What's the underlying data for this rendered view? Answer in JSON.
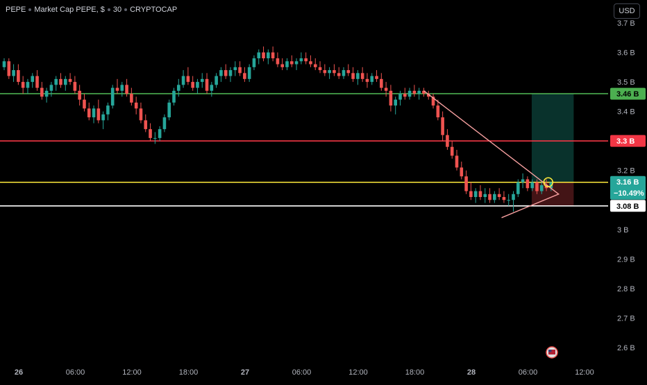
{
  "header": {
    "symbol": "PEPE",
    "title": "Market Cap PEPE, $",
    "interval": "30",
    "source": "CRYPTOCAP",
    "currency_label": "USD"
  },
  "colors": {
    "up": "#26a69a",
    "down": "#ef5350",
    "background": "#000000",
    "level_green": "#4caf50",
    "level_red": "#f23645",
    "level_yellow": "#ffeb3b",
    "level_white": "#ffffff",
    "triangle": "#f7a0a0",
    "tp_zone": "#0b3b34",
    "sl_zone": "#4a1618"
  },
  "chart_data": {
    "type": "candlestick",
    "title": "Market Cap PEPE, $ · 30 · CRYPTOCAP",
    "ylabel": "",
    "xlabel": "",
    "y_unit": "B",
    "ylim": [
      2.54,
      3.74
    ],
    "y_ticks": [
      "3.7 B",
      "3.6 B",
      "3.5 B",
      "3.4 B",
      "3.2 B",
      "3 B",
      "2.9 B",
      "2.8 B",
      "2.7 B",
      "2.6 B"
    ],
    "y_tick_values": [
      3.7,
      3.6,
      3.5,
      3.4,
      3.2,
      3.0,
      2.9,
      2.8,
      2.7,
      2.6
    ],
    "x_ticks": [
      "26",
      "06:00",
      "12:00",
      "18:00",
      "27",
      "06:00",
      "12:00",
      "18:00",
      "28",
      "06:00",
      "12:00"
    ],
    "x_tick_bar_index": [
      4,
      16,
      28,
      40,
      52,
      64,
      76,
      88,
      100,
      112,
      124
    ],
    "x_start_bar": 0.4,
    "bars_shown": 130,
    "grid": false,
    "horizontal_levels": [
      {
        "name": "target",
        "value": 3.46,
        "label": "3.46 B",
        "color": "#4caf50"
      },
      {
        "name": "resistance",
        "value": 3.3,
        "label": "3.3 B",
        "color": "#f23645"
      },
      {
        "name": "current",
        "value": 3.16,
        "label": "3.16 B",
        "change": "−10.49%",
        "color": "#ffeb3b"
      },
      {
        "name": "support",
        "value": 3.08,
        "label": "3.08 B",
        "color": "#ffffff"
      }
    ],
    "triangle_pattern": {
      "apex": [
        117.6,
        3.12
      ],
      "upper_start": [
        89,
        3.47
      ],
      "lower_start": [
        105.5,
        3.04
      ]
    },
    "position": {
      "entry": 3.16,
      "target": 3.46,
      "stop": 3.08,
      "start_bar": 112.8,
      "end_bar": 121.7
    },
    "marker": {
      "bar": 115.4,
      "value": 3.16
    },
    "candles": [
      [
        3.55,
        3.58,
        3.54,
        3.57
      ],
      [
        3.57,
        3.58,
        3.51,
        3.52
      ],
      [
        3.52,
        3.56,
        3.5,
        3.54
      ],
      [
        3.54,
        3.56,
        3.49,
        3.5
      ],
      [
        3.5,
        3.52,
        3.46,
        3.48
      ],
      [
        3.48,
        3.51,
        3.46,
        3.5
      ],
      [
        3.5,
        3.53,
        3.48,
        3.52
      ],
      [
        3.52,
        3.54,
        3.47,
        3.48
      ],
      [
        3.48,
        3.5,
        3.44,
        3.45
      ],
      [
        3.45,
        3.48,
        3.43,
        3.47
      ],
      [
        3.47,
        3.5,
        3.45,
        3.49
      ],
      [
        3.49,
        3.52,
        3.47,
        3.51
      ],
      [
        3.51,
        3.53,
        3.48,
        3.49
      ],
      [
        3.49,
        3.52,
        3.47,
        3.51
      ],
      [
        3.51,
        3.53,
        3.49,
        3.5
      ],
      [
        3.5,
        3.52,
        3.46,
        3.47
      ],
      [
        3.47,
        3.49,
        3.42,
        3.44
      ],
      [
        3.44,
        3.46,
        3.4,
        3.41
      ],
      [
        3.41,
        3.43,
        3.37,
        3.38
      ],
      [
        3.38,
        3.42,
        3.36,
        3.41
      ],
      [
        3.41,
        3.44,
        3.36,
        3.37
      ],
      [
        3.37,
        3.4,
        3.34,
        3.39
      ],
      [
        3.39,
        3.43,
        3.37,
        3.42
      ],
      [
        3.42,
        3.49,
        3.41,
        3.48
      ],
      [
        3.48,
        3.51,
        3.46,
        3.47
      ],
      [
        3.47,
        3.5,
        3.45,
        3.49
      ],
      [
        3.49,
        3.51,
        3.45,
        3.46
      ],
      [
        3.46,
        3.48,
        3.42,
        3.43
      ],
      [
        3.43,
        3.45,
        3.39,
        3.41
      ],
      [
        3.41,
        3.43,
        3.36,
        3.37
      ],
      [
        3.37,
        3.39,
        3.33,
        3.34
      ],
      [
        3.34,
        3.36,
        3.3,
        3.31
      ],
      [
        3.31,
        3.33,
        3.29,
        3.31
      ],
      [
        3.31,
        3.35,
        3.3,
        3.34
      ],
      [
        3.34,
        3.39,
        3.33,
        3.38
      ],
      [
        3.38,
        3.44,
        3.37,
        3.43
      ],
      [
        3.43,
        3.48,
        3.42,
        3.47
      ],
      [
        3.47,
        3.51,
        3.45,
        3.49
      ],
      [
        3.49,
        3.54,
        3.48,
        3.52
      ],
      [
        3.52,
        3.55,
        3.49,
        3.5
      ],
      [
        3.5,
        3.52,
        3.47,
        3.48
      ],
      [
        3.48,
        3.51,
        3.46,
        3.5
      ],
      [
        3.5,
        3.53,
        3.48,
        3.51
      ],
      [
        3.51,
        3.53,
        3.46,
        3.47
      ],
      [
        3.47,
        3.5,
        3.45,
        3.49
      ],
      [
        3.49,
        3.53,
        3.48,
        3.52
      ],
      [
        3.52,
        3.55,
        3.5,
        3.54
      ],
      [
        3.54,
        3.56,
        3.51,
        3.52
      ],
      [
        3.52,
        3.55,
        3.5,
        3.54
      ],
      [
        3.54,
        3.57,
        3.52,
        3.55
      ],
      [
        3.55,
        3.57,
        3.52,
        3.53
      ],
      [
        3.53,
        3.55,
        3.5,
        3.51
      ],
      [
        3.51,
        3.56,
        3.5,
        3.55
      ],
      [
        3.55,
        3.59,
        3.54,
        3.58
      ],
      [
        3.58,
        3.61,
        3.56,
        3.6
      ],
      [
        3.6,
        3.62,
        3.57,
        3.58
      ],
      [
        3.58,
        3.61,
        3.56,
        3.6
      ],
      [
        3.6,
        3.62,
        3.57,
        3.58
      ],
      [
        3.58,
        3.6,
        3.55,
        3.56
      ],
      [
        3.56,
        3.58,
        3.54,
        3.55
      ],
      [
        3.55,
        3.58,
        3.54,
        3.57
      ],
      [
        3.57,
        3.59,
        3.55,
        3.56
      ],
      [
        3.56,
        3.58,
        3.54,
        3.57
      ],
      [
        3.57,
        3.6,
        3.56,
        3.58
      ],
      [
        3.58,
        3.6,
        3.56,
        3.57
      ],
      [
        3.57,
        3.59,
        3.55,
        3.56
      ],
      [
        3.56,
        3.58,
        3.54,
        3.55
      ],
      [
        3.55,
        3.57,
        3.53,
        3.54
      ],
      [
        3.54,
        3.56,
        3.52,
        3.53
      ],
      [
        3.53,
        3.55,
        3.51,
        3.54
      ],
      [
        3.54,
        3.56,
        3.52,
        3.53
      ],
      [
        3.53,
        3.55,
        3.51,
        3.52
      ],
      [
        3.52,
        3.55,
        3.51,
        3.54
      ],
      [
        3.54,
        3.56,
        3.52,
        3.53
      ],
      [
        3.53,
        3.55,
        3.5,
        3.51
      ],
      [
        3.51,
        3.54,
        3.49,
        3.53
      ],
      [
        3.53,
        3.55,
        3.5,
        3.51
      ],
      [
        3.51,
        3.53,
        3.48,
        3.5
      ],
      [
        3.5,
        3.53,
        3.49,
        3.52
      ],
      [
        3.52,
        3.54,
        3.5,
        3.51
      ],
      [
        3.51,
        3.53,
        3.47,
        3.48
      ],
      [
        3.48,
        3.5,
        3.45,
        3.47
      ],
      [
        3.47,
        3.49,
        3.4,
        3.42
      ],
      [
        3.42,
        3.45,
        3.39,
        3.44
      ],
      [
        3.44,
        3.47,
        3.42,
        3.46
      ],
      [
        3.46,
        3.48,
        3.44,
        3.45
      ],
      [
        3.45,
        3.48,
        3.44,
        3.47
      ],
      [
        3.47,
        3.49,
        3.45,
        3.46
      ],
      [
        3.46,
        3.48,
        3.44,
        3.47
      ],
      [
        3.47,
        3.48,
        3.45,
        3.46
      ],
      [
        3.46,
        3.47,
        3.44,
        3.45
      ],
      [
        3.45,
        3.46,
        3.41,
        3.42
      ],
      [
        3.42,
        3.44,
        3.37,
        3.38
      ],
      [
        3.38,
        3.4,
        3.3,
        3.32
      ],
      [
        3.32,
        3.34,
        3.27,
        3.28
      ],
      [
        3.28,
        3.3,
        3.24,
        3.25
      ],
      [
        3.25,
        3.27,
        3.2,
        3.21
      ],
      [
        3.21,
        3.23,
        3.17,
        3.18
      ],
      [
        3.18,
        3.2,
        3.12,
        3.13
      ],
      [
        3.13,
        3.16,
        3.1,
        3.11
      ],
      [
        3.11,
        3.14,
        3.09,
        3.13
      ],
      [
        3.13,
        3.15,
        3.1,
        3.11
      ],
      [
        3.11,
        3.14,
        3.09,
        3.12
      ],
      [
        3.12,
        3.14,
        3.09,
        3.1
      ],
      [
        3.1,
        3.13,
        3.09,
        3.12
      ],
      [
        3.12,
        3.14,
        3.1,
        3.11
      ],
      [
        3.11,
        3.13,
        3.09,
        3.1
      ],
      [
        3.1,
        3.12,
        3.08,
        3.1
      ],
      [
        3.1,
        3.13,
        3.06,
        3.12
      ],
      [
        3.12,
        3.17,
        3.11,
        3.16
      ],
      [
        3.16,
        3.19,
        3.14,
        3.17
      ],
      [
        3.17,
        3.18,
        3.13,
        3.14
      ],
      [
        3.14,
        3.17,
        3.13,
        3.16
      ],
      [
        3.16,
        3.17,
        3.12,
        3.13
      ],
      [
        3.13,
        3.16,
        3.12,
        3.15
      ],
      [
        3.15,
        3.17,
        3.13,
        3.14
      ],
      [
        3.14,
        3.16,
        3.13,
        3.16
      ]
    ]
  }
}
